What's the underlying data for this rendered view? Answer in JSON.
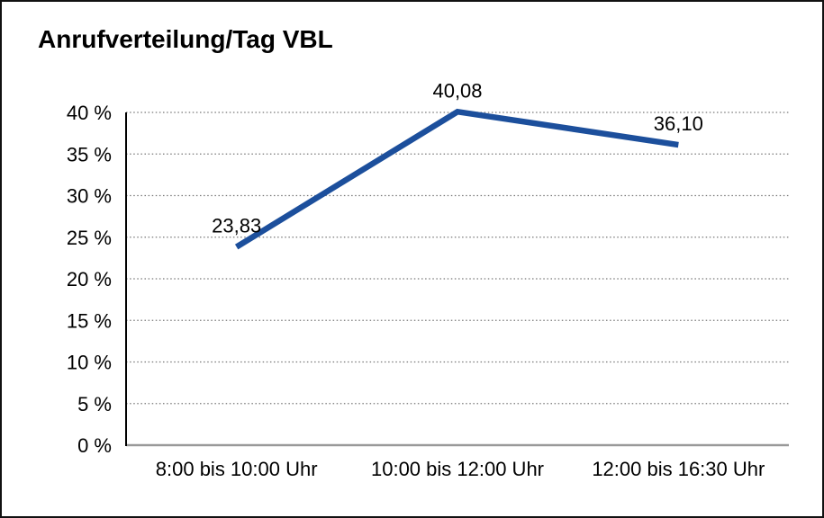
{
  "chart_data": {
    "type": "line",
    "title": "Anrufverteilung/Tag VBL",
    "categories": [
      "8:00 bis 10:00 Uhr",
      "10:00 bis 12:00 Uhr",
      "12:00 bis 16:30 Uhr"
    ],
    "values": [
      23.83,
      40.08,
      36.1
    ],
    "point_labels": [
      "23,83",
      "40,08",
      "36,10"
    ],
    "y_ticks": [
      {
        "value": 0,
        "label": "0 %"
      },
      {
        "value": 5,
        "label": "5 %"
      },
      {
        "value": 10,
        "label": "10 %"
      },
      {
        "value": 15,
        "label": "15 %"
      },
      {
        "value": 20,
        "label": "20 %"
      },
      {
        "value": 25,
        "label": "25 %"
      },
      {
        "value": 30,
        "label": "30 %"
      },
      {
        "value": 35,
        "label": "35 %"
      },
      {
        "value": 40,
        "label": "40 %"
      }
    ],
    "ylim": [
      0,
      40
    ],
    "xlabel": "",
    "ylabel": "",
    "grid": true,
    "legend": "none",
    "colors": {
      "line": "#1c4f9c",
      "gridline": "#777777",
      "y_axis": "#000000",
      "baseline": "#999999",
      "text": "#000000",
      "border": "#111111",
      "background": "#ffffff"
    }
  }
}
